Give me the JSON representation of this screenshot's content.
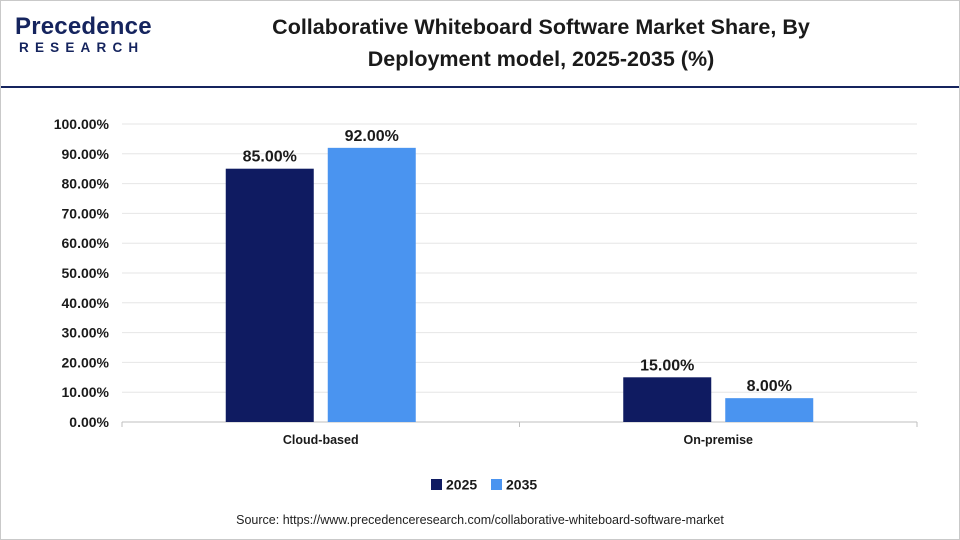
{
  "logo": {
    "line1": "Precedence",
    "line2": "RESEARCH"
  },
  "title_line1": "Collaborative Whiteboard Software Market Share, By",
  "title_line2": "Deployment model, 2025-2035 (%)",
  "source": "Source: https://www.precedenceresearch.com/collaborative-whiteboard-software-market",
  "colors": {
    "brand": "#15245e",
    "s2025": "#0f1b61",
    "s2035": "#4a94f0"
  },
  "chart_data": {
    "type": "bar",
    "title": "Collaborative Whiteboard Software Market Share, By Deployment model, 2025-2035 (%)",
    "categories": [
      "Cloud-based",
      "On-premise"
    ],
    "series": [
      {
        "name": "2025",
        "values": [
          85.0,
          15.0
        ],
        "labels": [
          "85.00%",
          "15.00%"
        ],
        "color": "#0f1b61"
      },
      {
        "name": "2035",
        "values": [
          92.0,
          8.0
        ],
        "labels": [
          "92.00%",
          "8.00%"
        ],
        "color": "#4a94f0"
      }
    ],
    "ylim": [
      0,
      100
    ],
    "yticks": [
      "0.00%",
      "10.00%",
      "20.00%",
      "30.00%",
      "40.00%",
      "50.00%",
      "60.00%",
      "70.00%",
      "80.00%",
      "90.00%",
      "100.00%"
    ],
    "grid": true,
    "legend": "bottom-center"
  }
}
